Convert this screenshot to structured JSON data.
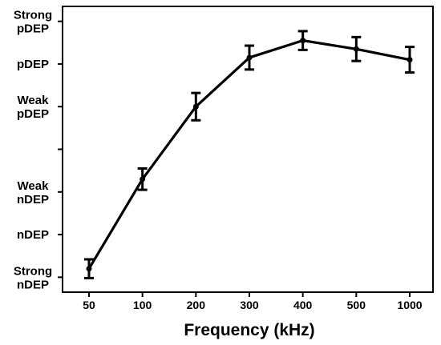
{
  "chart_data": {
    "type": "line",
    "xlabel": "Frequency (kHz)",
    "categories": [
      "50",
      "100",
      "200",
      "300",
      "400",
      "500",
      "1000"
    ],
    "y_categories": [
      {
        "level": 0,
        "lines": [
          "Strong",
          "nDEP"
        ]
      },
      {
        "level": 1,
        "lines": [
          "nDEP"
        ]
      },
      {
        "level": 2,
        "lines": [
          "Weak",
          "nDEP"
        ]
      },
      {
        "level": 4,
        "lines": [
          "Weak",
          "pDEP"
        ]
      },
      {
        "level": 5,
        "lines": [
          "pDEP"
        ]
      },
      {
        "level": 6,
        "lines": [
          "Strong",
          "pDEP"
        ]
      }
    ],
    "y_ticks": [
      0,
      1,
      2,
      3,
      4,
      5,
      6
    ],
    "ylim": [
      -0.35,
      6.35
    ],
    "series": [
      {
        "values": [
          0.2,
          2.3,
          4.0,
          5.15,
          5.55,
          5.35,
          5.1
        ],
        "errors": [
          0.22,
          0.25,
          0.32,
          0.28,
          0.22,
          0.28,
          0.3
        ]
      }
    ],
    "grid": false,
    "legend": false
  }
}
